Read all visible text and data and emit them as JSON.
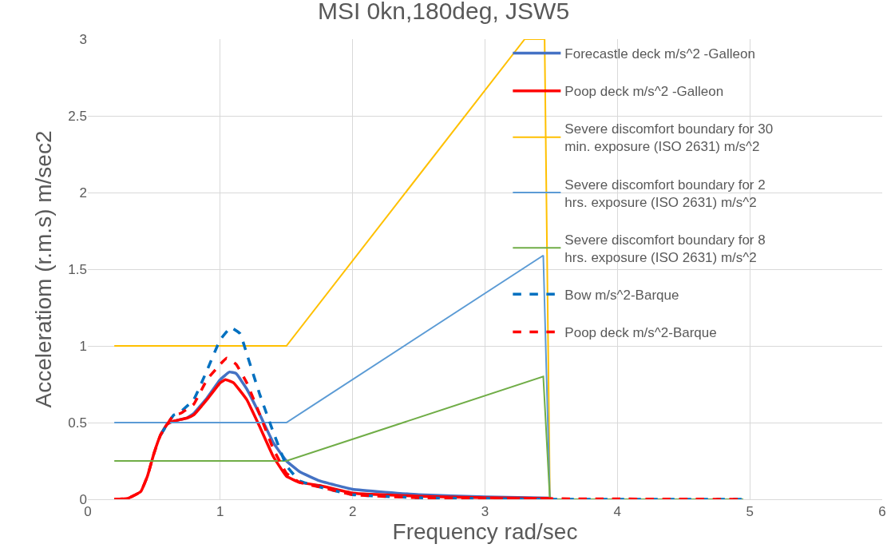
{
  "chart_data": {
    "type": "line",
    "title": "MSI 0kn,180deg, JSW5",
    "xlabel": "Frequency rad/sec",
    "ylabel": "Acceleratiom (r.m.s) m/sec2",
    "xlim": [
      0,
      6
    ],
    "xticks": [
      0,
      1,
      2,
      3,
      4,
      5,
      6
    ],
    "ylim": [
      0,
      3
    ],
    "yticks": [
      0,
      0.5,
      1,
      1.5,
      2,
      2.5,
      3
    ],
    "grid": true,
    "legend": "top right",
    "marker": "none",
    "series": [
      {
        "name": "Forecastle deck m/s^2 -Galleon",
        "color": "#4472c4",
        "line_style": "solid",
        "x": [
          0.55,
          0.6,
          0.65,
          0.7,
          0.75,
          0.8,
          0.9,
          1.0,
          1.07,
          1.12,
          1.2,
          1.3,
          1.4,
          1.5,
          1.6,
          1.75,
          2.0,
          2.5,
          3.0,
          3.5
        ],
        "values": [
          0.42,
          0.49,
          0.51,
          0.52,
          0.53,
          0.56,
          0.66,
          0.78,
          0.83,
          0.82,
          0.72,
          0.55,
          0.37,
          0.25,
          0.18,
          0.12,
          0.065,
          0.03,
          0.015,
          0.008
        ]
      },
      {
        "name": "Poop deck m/s^2 -Galleon",
        "color": "#ff0000",
        "line_style": "solid",
        "x": [
          0.2,
          0.3,
          0.4,
          0.45,
          0.5,
          0.55,
          0.6,
          0.65,
          0.7,
          0.75,
          0.8,
          0.9,
          1.0,
          1.04,
          1.1,
          1.2,
          1.3,
          1.4,
          1.5,
          1.6,
          1.75,
          2.0,
          2.5,
          3.0,
          3.5
        ],
        "values": [
          0,
          0.005,
          0.05,
          0.15,
          0.3,
          0.42,
          0.49,
          0.51,
          0.52,
          0.53,
          0.55,
          0.65,
          0.76,
          0.78,
          0.76,
          0.65,
          0.47,
          0.28,
          0.15,
          0.11,
          0.09,
          0.04,
          0.02,
          0.01,
          0.005
        ]
      },
      {
        "name": "Severe discomfort boundary for 30 min. exposure (ISO 2631) m/s^2",
        "color": "#ffc000",
        "line_style": "solid",
        "x": [
          0.2,
          1.5,
          3.3,
          3.45,
          3.49,
          4.95
        ],
        "values": [
          1,
          1,
          3,
          3,
          0,
          0
        ]
      },
      {
        "name": "Severe discomfort boundary for 2 hrs. exposure (ISO 2631) m/s^2",
        "color": "#5b9bd5",
        "line_style": "solid",
        "x": [
          0.2,
          1.5,
          3.44,
          3.49,
          4.95
        ],
        "values": [
          0.5,
          0.5,
          1.59,
          0,
          0
        ]
      },
      {
        "name": "Severe discomfort boundary for 8 hrs. exposure (ISO 2631) m/s^2",
        "color": "#70ad47",
        "line_style": "solid",
        "x": [
          0.2,
          1.5,
          3.44,
          3.49,
          4.95
        ],
        "values": [
          0.25,
          0.25,
          0.8,
          0,
          0
        ]
      },
      {
        "name": "Bow m/s^2-Barque",
        "color": "#0070c0",
        "line_style": "dashed",
        "x": [
          0.55,
          0.6,
          0.65,
          0.7,
          0.8,
          0.9,
          1.0,
          1.08,
          1.15,
          1.2,
          1.3,
          1.4,
          1.5,
          1.6,
          1.75,
          2.0,
          2.5,
          3.0,
          3.5,
          4.95
        ],
        "values": [
          0.42,
          0.49,
          0.55,
          0.57,
          0.65,
          0.84,
          1.04,
          1.12,
          1.08,
          0.95,
          0.68,
          0.44,
          0.22,
          0.12,
          0.08,
          0.03,
          0.01,
          0.005,
          0,
          0
        ]
      },
      {
        "name": "Poop deck m/s^2-Barque",
        "color": "#ff0000",
        "line_style": "dashed",
        "x": [
          0.2,
          0.3,
          0.4,
          0.45,
          0.5,
          0.55,
          0.6,
          0.65,
          0.7,
          0.8,
          0.9,
          1.0,
          1.05,
          1.12,
          1.2,
          1.3,
          1.4,
          1.5,
          1.6,
          1.75,
          2.0,
          2.5,
          3.0,
          4.95
        ],
        "values": [
          0,
          0.005,
          0.05,
          0.15,
          0.3,
          0.42,
          0.49,
          0.55,
          0.56,
          0.62,
          0.78,
          0.88,
          0.92,
          0.88,
          0.76,
          0.55,
          0.33,
          0.17,
          0.11,
          0.08,
          0.03,
          0.01,
          0.005,
          0
        ]
      }
    ]
  }
}
